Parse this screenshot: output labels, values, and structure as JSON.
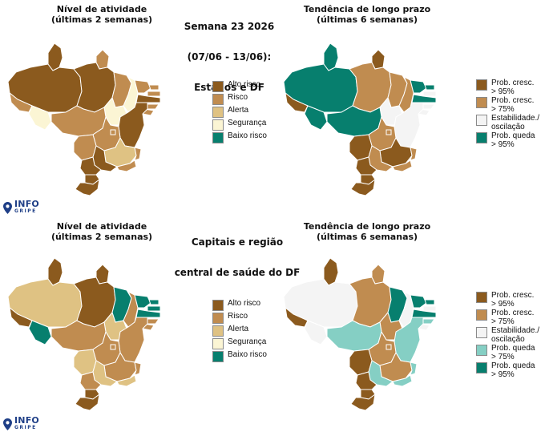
{
  "center_title": {
    "line1": "Semana 23 2026",
    "line2": "(07/06 - 13/06):",
    "line3": "Estados e DF"
  },
  "center_title_bottom": {
    "line1": "Capitais e região",
    "line2": "central de saúde do DF"
  },
  "panels": {
    "top_left_title": "Nível de atividade\n(últimas 2 semanas)",
    "top_right_title": "Tendência de longo prazo\n(últimas 6 semanas)",
    "bottom_left_title": "Nível de atividade\n(últimas 2 semanas)",
    "bottom_right_title": "Tendência de longo prazo\n(últimas 6 semanas)"
  },
  "legend_activity": [
    {
      "label": "Alto risco",
      "color": "#8b5a1e"
    },
    {
      "label": "Risco",
      "color": "#c08c50"
    },
    {
      "label": "Alerta",
      "color": "#dfc283"
    },
    {
      "label": "Segurança",
      "color": "#fbf5d4"
    },
    {
      "label": "Baixo risco",
      "color": "#077f6e"
    }
  ],
  "legend_trend_top": [
    {
      "label": "Prob. cresc.\n> 95%",
      "color": "#8b5a1e"
    },
    {
      "label": "Prob. cresc.\n> 75%",
      "color": "#c08c50"
    },
    {
      "label": "Estabilidade./\noscilação",
      "color": "#f4f4f4"
    },
    {
      "label": "Prob. queda\n> 95%",
      "color": "#077f6e"
    }
  ],
  "legend_trend_bottom": [
    {
      "label": "Prob. cresc.\n> 95%",
      "color": "#8b5a1e"
    },
    {
      "label": "Prob. cresc.\n> 75%",
      "color": "#c08c50"
    },
    {
      "label": "Estabilidade./\noscilação",
      "color": "#f4f4f4"
    },
    {
      "label": "Prob. queda\n> 75%",
      "color": "#85cfc4"
    },
    {
      "label": "Prob. queda\n> 95%",
      "color": "#077f6e"
    }
  ],
  "logo": {
    "main": "INFO",
    "sub": "GRIPE",
    "color": "#1f3f87"
  },
  "maps": {
    "top_left": {
      "AM": "#8b5a1e",
      "RR": "#8b5a1e",
      "AP": "#c08c50",
      "PA": "#8b5a1e",
      "AC": "#c08c50",
      "RO": "#fbf5d4",
      "TO": "#fbf5d4",
      "MA": "#c08c50",
      "PI": "#fbf5d4",
      "CE": "#c08c50",
      "RN": "#c08c50",
      "PB": "#c08c50",
      "PE": "#8b5a1e",
      "AL": "#c08c50",
      "SE": "#c08c50",
      "BA": "#8b5a1e",
      "MT": "#c08c50",
      "GO": "#c08c50",
      "DF": "#c08c50",
      "MS": "#c08c50",
      "MG": "#dfc283",
      "ES": "#c08c50",
      "RJ": "#c08c50",
      "SP": "#8b5a1e",
      "PR": "#8b5a1e",
      "SC": "#8b5a1e",
      "RS": "#8b5a1e"
    },
    "top_right": {
      "AM": "#077f6e",
      "RR": "#077f6e",
      "AP": "#8b5a1e",
      "PA": "#c08c50",
      "AC": "#8b5a1e",
      "RO": "#077f6e",
      "TO": "#f4f4f4",
      "MA": "#c08c50",
      "PI": "#c08c50",
      "CE": "#077f6e",
      "RN": "#077f6e",
      "PB": "#f4f4f4",
      "PE": "#077f6e",
      "AL": "#f4f4f4",
      "SE": "#f4f4f4",
      "BA": "#f4f4f4",
      "MT": "#077f6e",
      "GO": "#c08c50",
      "DF": "#c08c50",
      "MS": "#8b5a1e",
      "MG": "#8b5a1e",
      "ES": "#c08c50",
      "RJ": "#c08c50",
      "SP": "#c08c50",
      "PR": "#8b5a1e",
      "SC": "#8b5a1e",
      "RS": "#8b5a1e"
    },
    "bottom_left": {
      "AM": "#dfc283",
      "RR": "#8b5a1e",
      "AP": "#8b5a1e",
      "PA": "#8b5a1e",
      "AC": "#8b5a1e",
      "RO": "#077f6e",
      "TO": "#dfc283",
      "MA": "#077f6e",
      "PI": "#c08c50",
      "CE": "#077f6e",
      "RN": "#077f6e",
      "PB": "#077f6e",
      "PE": "#077f6e",
      "AL": "#c08c50",
      "SE": "#c08c50",
      "BA": "#c08c50",
      "MT": "#c08c50",
      "GO": "#c08c50",
      "DF": "#c08c50",
      "MS": "#dfc283",
      "MG": "#c08c50",
      "ES": "#c08c50",
      "RJ": "#dfc283",
      "SP": "#dfc283",
      "PR": "#c08c50",
      "SC": "#8b5a1e",
      "RS": "#8b5a1e"
    },
    "bottom_right": {
      "AM": "#f4f4f4",
      "RR": "#8b5a1e",
      "AP": "#c08c50",
      "PA": "#c08c50",
      "AC": "#8b5a1e",
      "RO": "#f4f4f4",
      "TO": "#c08c50",
      "MA": "#077f6e",
      "PI": "#f4f4f4",
      "CE": "#077f6e",
      "RN": "#077f6e",
      "PB": "#f4f4f4",
      "PE": "#077f6e",
      "AL": "#85cfc4",
      "SE": "#f4f4f4",
      "BA": "#85cfc4",
      "MT": "#85cfc4",
      "GO": "#c08c50",
      "DF": "#c08c50",
      "MS": "#8b5a1e",
      "MG": "#c08c50",
      "ES": "#85cfc4",
      "RJ": "#85cfc4",
      "SP": "#85cfc4",
      "PR": "#8b5a1e",
      "SC": "#8b5a1e",
      "RS": "#8b5a1e"
    }
  }
}
